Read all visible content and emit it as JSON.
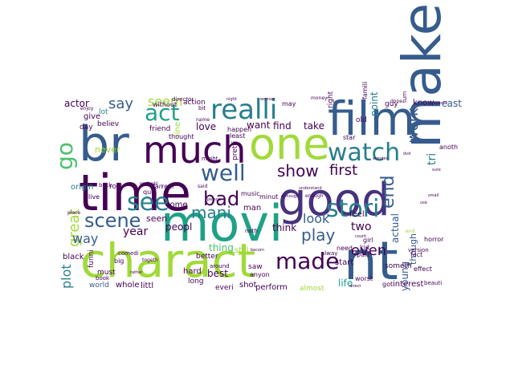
{
  "colors": {
    "c0": "#440154",
    "c1": "#46327e",
    "c2": "#365c8d",
    "c3": "#277f8e",
    "c4": "#1fa187",
    "c5": "#4ac16d",
    "c6": "#a0da39",
    "c7": "#fde725",
    "c8": "#3b528b",
    "c9": "#21918c"
  },
  "words": [
    {
      "text": "br",
      "color": "c2"
    },
    {
      "text": "much",
      "color": "c0"
    },
    {
      "text": "one",
      "color": "c6"
    },
    {
      "text": "film",
      "color": "c2"
    },
    {
      "text": "time",
      "color": "c0"
    },
    {
      "text": "good",
      "color": "c1"
    },
    {
      "text": "make",
      "color": "c2"
    },
    {
      "text": "movi",
      "color": "c4"
    },
    {
      "text": "charact",
      "color": "c6"
    },
    {
      "text": "nt",
      "color": "c2"
    },
    {
      "text": "realli",
      "color": "c3"
    },
    {
      "text": "watch",
      "color": "c3"
    },
    {
      "text": "go",
      "color": "c5"
    },
    {
      "text": "see",
      "color": "c3"
    },
    {
      "text": "well",
      "color": "c2"
    },
    {
      "text": "act",
      "color": "c4"
    },
    {
      "text": "bad",
      "color": "c0"
    },
    {
      "text": "stori",
      "color": "c3"
    },
    {
      "text": "scene",
      "color": "c2"
    },
    {
      "text": "made",
      "color": "c0"
    },
    {
      "text": "end",
      "color": "c2"
    },
    {
      "text": "play",
      "color": "c2"
    },
    {
      "text": "show",
      "color": "c0"
    },
    {
      "text": "first",
      "color": "c0"
    },
    {
      "text": "mani",
      "color": "c3"
    },
    {
      "text": "say",
      "color": "c2"
    },
    {
      "text": "seem",
      "color": "c6"
    },
    {
      "text": "actor",
      "color": "c0"
    },
    {
      "text": "great",
      "color": "c6"
    },
    {
      "text": "way",
      "color": "c2"
    },
    {
      "text": "year",
      "color": "c0"
    },
    {
      "text": "plot",
      "color": "c3"
    },
    {
      "text": "even",
      "color": "c0"
    },
    {
      "text": "work",
      "color": "c2"
    },
    {
      "text": "look",
      "color": "c2"
    },
    {
      "text": "think",
      "color": "c0"
    },
    {
      "text": "two",
      "color": "c0"
    },
    {
      "text": "know",
      "color": "c0"
    },
    {
      "text": "cast",
      "color": "c2"
    },
    {
      "text": "tri",
      "color": "c3"
    },
    {
      "text": "love",
      "color": "c0"
    },
    {
      "text": "want",
      "color": "c0"
    },
    {
      "text": "find",
      "color": "c0"
    },
    {
      "text": "take",
      "color": "c0"
    },
    {
      "text": "come",
      "color": "c0"
    },
    {
      "text": "peopl",
      "color": "c0"
    },
    {
      "text": "seen",
      "color": "c0"
    },
    {
      "text": "best",
      "color": "c0"
    },
    {
      "text": "life",
      "color": "c4"
    },
    {
      "text": "thing",
      "color": "c5"
    },
    {
      "text": "man",
      "color": "c0"
    },
    {
      "text": "point",
      "color": "c3"
    },
    {
      "text": "feel",
      "color": "c0"
    },
    {
      "text": "start",
      "color": "c0"
    },
    {
      "text": "give",
      "color": "c0"
    },
    {
      "text": "lot",
      "color": "c3"
    },
    {
      "text": "day",
      "color": "c0"
    },
    {
      "text": "believ",
      "color": "c0"
    },
    {
      "text": "never",
      "color": "c6"
    },
    {
      "text": "origin",
      "color": "c3"
    },
    {
      "text": "role",
      "color": "c0"
    },
    {
      "text": "black",
      "color": "c0"
    },
    {
      "text": "must",
      "color": "c0"
    },
    {
      "text": "hard",
      "color": "c0"
    },
    {
      "text": "shot",
      "color": "c0"
    },
    {
      "text": "perform",
      "color": "c0"
    },
    {
      "text": "world",
      "color": "c2"
    },
    {
      "text": "whole",
      "color": "c0"
    },
    {
      "text": "littl",
      "color": "c0"
    },
    {
      "text": "young",
      "color": "c2"
    },
    {
      "text": "though",
      "color": "c2"
    },
    {
      "text": "actual",
      "color": "c2"
    },
    {
      "text": "interest",
      "color": "c0"
    },
    {
      "text": "got",
      "color": "c0"
    },
    {
      "text": "almost",
      "color": "c6"
    },
    {
      "text": "everi",
      "color": "c0"
    },
    {
      "text": "long",
      "color": "c0"
    },
    {
      "text": "better",
      "color": "c0"
    },
    {
      "text": "guy",
      "color": "c0"
    },
    {
      "text": "old",
      "color": "c0"
    },
    {
      "text": "friend",
      "color": "c0"
    },
    {
      "text": "action",
      "color": "c0"
    },
    {
      "text": "without",
      "color": "c0"
    },
    {
      "text": "anoth",
      "color": "c0"
    },
    {
      "text": "fact",
      "color": "c0"
    },
    {
      "text": "right",
      "color": "c0"
    },
    {
      "text": "saw",
      "color": "c0"
    },
    {
      "text": "may",
      "color": "c0"
    },
    {
      "text": "funni",
      "color": "c0"
    },
    {
      "text": "fan",
      "color": "c0"
    },
    {
      "text": "real",
      "color": "c0"
    },
    {
      "text": "line",
      "color": "c6"
    },
    {
      "text": "happen",
      "color": "c0"
    },
    {
      "text": "music",
      "color": "c0"
    },
    {
      "text": "minut",
      "color": "c0"
    },
    {
      "text": "least",
      "color": "c0"
    },
    {
      "text": "star",
      "color": "c0"
    },
    {
      "text": "kid",
      "color": "c0"
    },
    {
      "text": "girl",
      "color": "c0"
    },
    {
      "text": "part",
      "color": "c0"
    },
    {
      "text": "need",
      "color": "c0"
    },
    {
      "text": "effect",
      "color": "c0"
    },
    {
      "text": "horror",
      "color": "c0"
    },
    {
      "text": "version",
      "color": "c0"
    },
    {
      "text": "director",
      "color": "c0"
    },
    {
      "text": "thought",
      "color": "c0"
    },
    {
      "text": "quit",
      "color": "c0"
    },
    {
      "text": "live",
      "color": "c0"
    },
    {
      "text": "big",
      "color": "c0"
    },
    {
      "text": "pretti",
      "color": "c0"
    },
    {
      "text": "someth",
      "color": "c0"
    },
    {
      "text": "still",
      "color": "c6"
    },
    {
      "text": "might",
      "color": "c0"
    },
    {
      "text": "around",
      "color": "c0"
    },
    {
      "text": "noth",
      "color": "c0"
    },
    {
      "text": "anyon",
      "color": "c0"
    },
    {
      "text": "worst",
      "color": "c0"
    },
    {
      "text": "beauti",
      "color": "c0"
    },
    {
      "text": "turn",
      "color": "c0"
    },
    {
      "text": "famili",
      "color": "c0"
    },
    {
      "text": "alway",
      "color": "c0"
    },
    {
      "text": "comedi",
      "color": "c0"
    },
    {
      "text": "book",
      "color": "c0"
    },
    {
      "text": "enjoy",
      "color": "c0"
    },
    {
      "text": "place",
      "color": "c0"
    },
    {
      "text": "probabl",
      "color": "c0"
    },
    {
      "text": "bit",
      "color": "c0"
    },
    {
      "text": "togeth",
      "color": "c0"
    },
    {
      "text": "back",
      "color": "c0"
    },
    {
      "text": "said",
      "color": "c0"
    },
    {
      "text": "name",
      "color": "c0"
    },
    {
      "text": "money",
      "color": "c0"
    },
    {
      "text": "special",
      "color": "c0"
    },
    {
      "text": "small",
      "color": "c0"
    },
    {
      "text": "wonder",
      "color": "c0"
    },
    {
      "text": "done",
      "color": "c0"
    },
    {
      "text": "direct",
      "color": "c0"
    },
    {
      "text": "end",
      "color": "c6"
    },
    {
      "text": "sure",
      "color": "c0"
    },
    {
      "text": "use",
      "color": "c0"
    },
    {
      "text": "becom",
      "color": "c0"
    },
    {
      "text": "enough",
      "color": "c0"
    },
    {
      "text": "although",
      "color": "c0"
    },
    {
      "text": "understand",
      "color": "c0"
    },
    {
      "text": "person",
      "color": "c0"
    },
    {
      "text": "rather",
      "color": "c0"
    },
    {
      "text": "night",
      "color": "c0"
    },
    {
      "text": "woman",
      "color": "c0"
    },
    {
      "text": "courti",
      "color": "c0"
    },
    {
      "text": "dvd",
      "color": "c0"
    }
  ]
}
